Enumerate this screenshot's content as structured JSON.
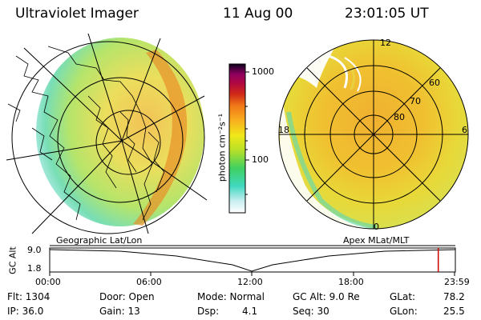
{
  "header": {
    "instrument": "Ultraviolet Imager",
    "date": "11 Aug 00",
    "time": "23:01:05 UT"
  },
  "colorbar": {
    "unit_label": "photon cm⁻²s⁻¹",
    "ticks": [
      "1000",
      "100"
    ]
  },
  "left_panel": {
    "caption": "Geographic Lat/Lon"
  },
  "right_panel": {
    "caption": "Apex MLat/MLT",
    "lat_labels": [
      "60",
      "70",
      "80"
    ],
    "mlt_labels": {
      "top": "12",
      "left": "18",
      "right": "6",
      "bottom": "0"
    }
  },
  "altitude_plot": {
    "ylabel": "GC Alt",
    "yticks": [
      "9.0",
      "1.8"
    ],
    "xticks": [
      "00:00",
      "06:00",
      "12:00",
      "18:00",
      "23:59"
    ],
    "current_time_marker_hours": 23.02,
    "marker_color": "#cc0000"
  },
  "info": {
    "flt": "Flt: 1304",
    "ip": "IP: 36.0",
    "door": "Door: Open",
    "gain": "Gain: 13",
    "mode": "Mode: Normal",
    "dsp_label": "Dsp:",
    "dsp_value": "4.1",
    "gcalt": "GC Alt: 9.0 Re",
    "seq": "Seq: 30",
    "glat_label": "GLat:",
    "glat_value": "78.2",
    "glon_label": "GLon:",
    "glon_value": "25.5"
  }
}
